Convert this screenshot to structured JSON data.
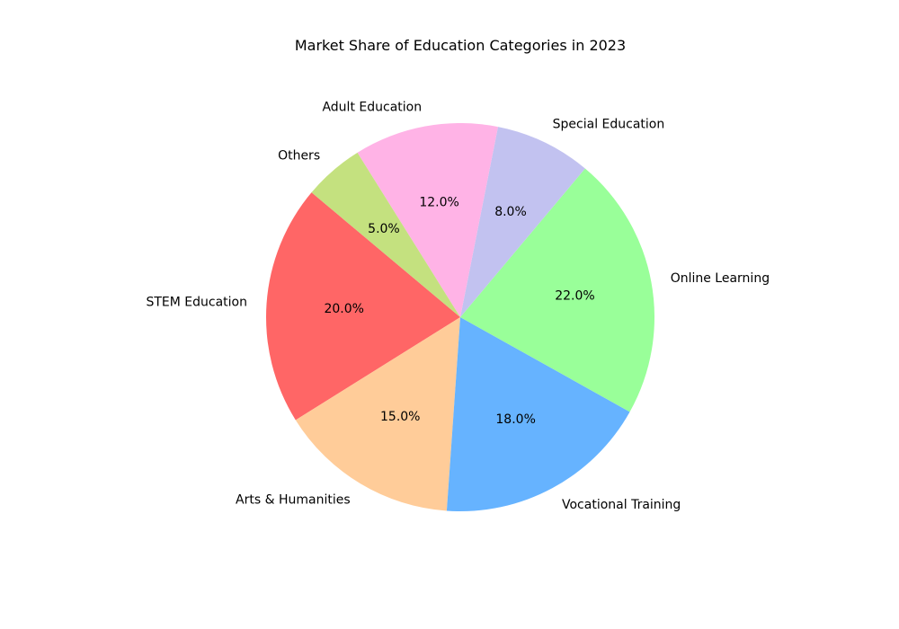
{
  "chart_data": {
    "type": "pie",
    "title": "Market Share of Education Categories in 2023",
    "categories": [
      "STEM Education",
      "Arts & Humanities",
      "Vocational Training",
      "Online Learning",
      "Special Education",
      "Adult Education",
      "Others"
    ],
    "values": [
      20.0,
      15.0,
      18.0,
      22.0,
      8.0,
      12.0,
      5.0
    ],
    "value_labels": [
      "20.0%",
      "15.0%",
      "18.0%",
      "22.0%",
      "8.0%",
      "12.0%",
      "5.0%"
    ],
    "colors": [
      "#ff6666",
      "#ffcc99",
      "#66b3ff",
      "#99ff99",
      "#c2c2f0",
      "#ffb3e6",
      "#c4e17f"
    ],
    "start_angle_deg": 140,
    "direction": "counterclockwise",
    "legend": "none"
  }
}
